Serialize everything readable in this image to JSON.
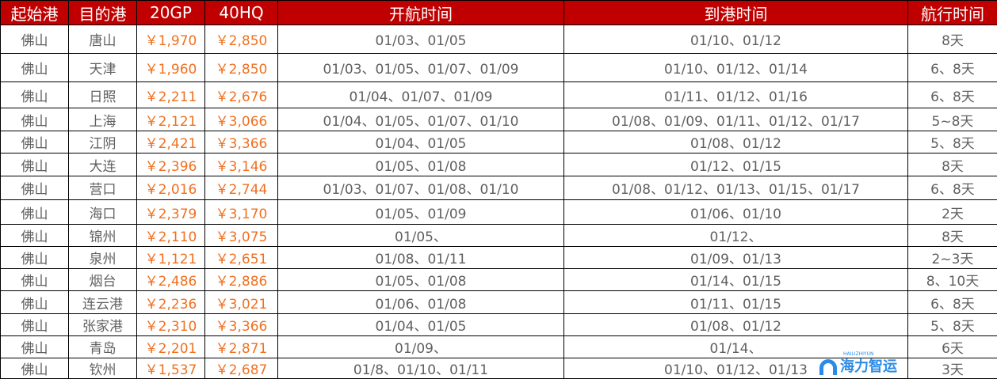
{
  "headers": [
    "起始港",
    "目的港",
    "20GP",
    "40HQ",
    "开航时间",
    "到港时间",
    "航行时间"
  ],
  "rows": [
    {
      "origin": "佛山",
      "dest": "唐山",
      "gp20": "￥1,970",
      "hq40": "￥2,850",
      "depart": "01/03、01/05",
      "arrive": "01/10、01/12",
      "transit": "8天"
    },
    {
      "origin": "佛山",
      "dest": "天津",
      "gp20": "￥1,960",
      "hq40": "￥2,850",
      "depart": "01/03、01/05、01/07、01/09",
      "arrive": "01/10、01/12、01/14",
      "transit": "6、8天"
    },
    {
      "origin": "佛山",
      "dest": "日照",
      "gp20": "￥2,211",
      "hq40": "￥2,676",
      "depart": "01/04、01/07、01/09",
      "arrive": "01/11、01/12、01/16",
      "transit": "6、8天"
    },
    {
      "origin": "佛山",
      "dest": "上海",
      "gp20": "￥2,121",
      "hq40": "￥3,066",
      "depart": "01/04、01/05、01/07、01/10",
      "arrive": "01/08、01/09、01/11、01/12、01/17",
      "transit": "5~8天"
    },
    {
      "origin": "佛山",
      "dest": "江阴",
      "gp20": "￥2,421",
      "hq40": "￥3,366",
      "depart": "01/04、01/05",
      "arrive": "01/08、01/12",
      "transit": "5、8天"
    },
    {
      "origin": "佛山",
      "dest": "大连",
      "gp20": "￥2,396",
      "hq40": "￥3,146",
      "depart": "01/05、01/08",
      "arrive": "01/12、01/15",
      "transit": "8天"
    },
    {
      "origin": "佛山",
      "dest": "营口",
      "gp20": "￥2,016",
      "hq40": "￥2,744",
      "depart": "01/03、01/07、01/08、01/10",
      "arrive": "01/08、01/12、01/13、01/15、01/17",
      "transit": "6、8天"
    },
    {
      "origin": "佛山",
      "dest": "海口",
      "gp20": "￥2,379",
      "hq40": "￥3,170",
      "depart": "01/05、01/09",
      "arrive": "01/06、01/10",
      "transit": "2天"
    },
    {
      "origin": "佛山",
      "dest": "锦州",
      "gp20": "￥2,110",
      "hq40": "￥3,075",
      "depart": "01/05、",
      "arrive": "01/12、",
      "transit": "8天"
    },
    {
      "origin": "佛山",
      "dest": "泉州",
      "gp20": "￥1,121",
      "hq40": "￥2,651",
      "depart": "01/08、01/11",
      "arrive": "01/09、01/13",
      "transit": "2~3天"
    },
    {
      "origin": "佛山",
      "dest": "烟台",
      "gp20": "￥2,486",
      "hq40": "￥2,886",
      "depart": "01/05、01/08",
      "arrive": "01/14、01/15",
      "transit": "8、10天"
    },
    {
      "origin": "佛山",
      "dest": "连云港",
      "gp20": "￥2,236",
      "hq40": "￥3,021",
      "depart": "01/06、01/08",
      "arrive": "01/11、01/15",
      "transit": "6、8天"
    },
    {
      "origin": "佛山",
      "dest": "张家港",
      "gp20": "￥2,310",
      "hq40": "￥3,366",
      "depart": "01/04、01/05",
      "arrive": "01/08、01/12",
      "transit": "5、8天"
    },
    {
      "origin": "佛山",
      "dest": "青岛",
      "gp20": "￥2,201",
      "hq40": "￥2,871",
      "depart": "01/09、",
      "arrive": "01/14、",
      "transit": "6天"
    },
    {
      "origin": "佛山",
      "dest": "钦州",
      "gp20": "￥1,537",
      "hq40": "￥2,687",
      "depart": "01/8、01/10、01/11",
      "arrive": "01/10、01/12、01/13",
      "transit": "3天"
    }
  ],
  "watermark": {
    "text": "海力智运",
    "subtext": "HAILIZHIYUN"
  },
  "colors": {
    "header_bg": "#c00000",
    "price": "#f07020",
    "text": "#606060",
    "logo": "#2a8ce8"
  }
}
